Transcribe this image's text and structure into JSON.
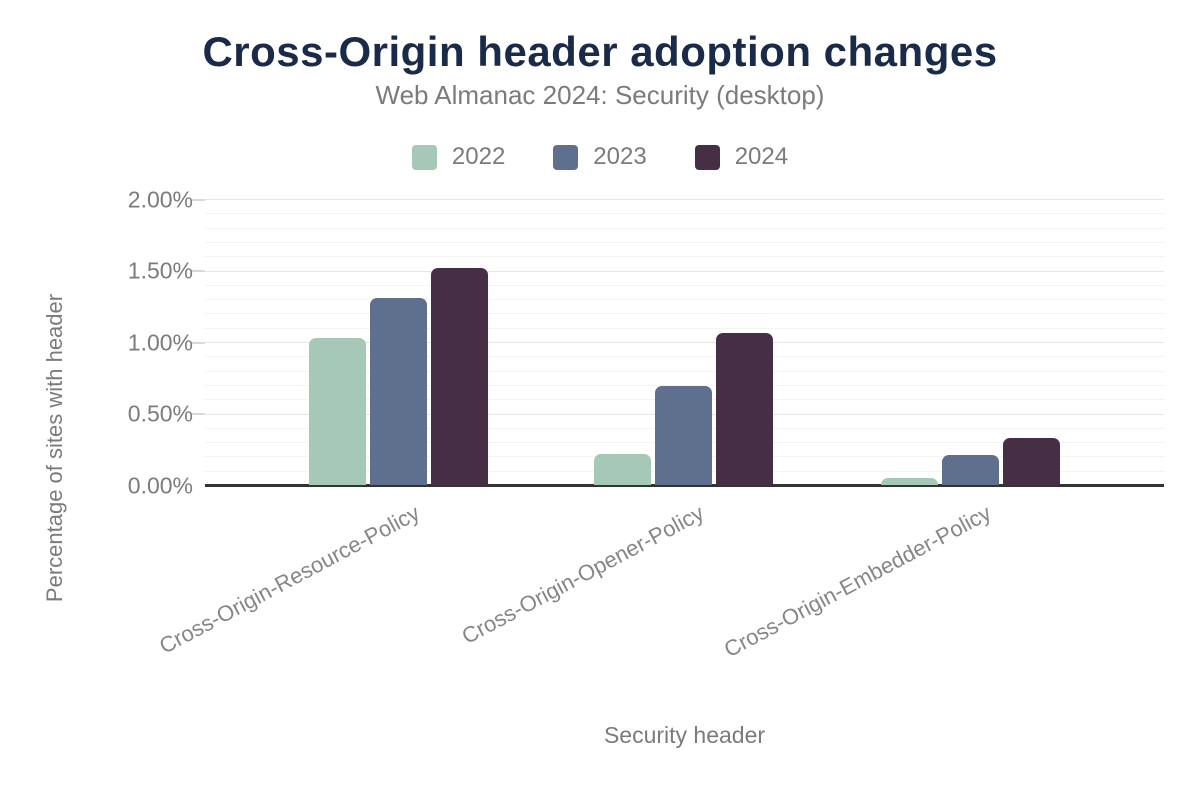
{
  "title": "Cross-Origin header adoption changes",
  "subtitle": "Web Almanac 2024: Security (desktop)",
  "colors": {
    "title_text": "#1a2b49",
    "body_text": "#7b7b7b",
    "axis_line": "#333333",
    "grid_major": "#e6e6e6",
    "grid_minor": "#f4f4f4",
    "series_2022": "#a5c8b7",
    "series_2023": "#5e708e",
    "series_2024": "#462f44"
  },
  "chart_data": {
    "type": "bar",
    "title": "Cross-Origin header adoption changes",
    "subtitle": "Web Almanac 2024: Security (desktop)",
    "categories": [
      "Cross-Origin-Resource-Policy",
      "Cross-Origin-Opener-Policy",
      "Cross-Origin-Embedder-Policy"
    ],
    "series": [
      {
        "name": "2022",
        "color": "#a5c8b7",
        "values": [
          1.03,
          0.22,
          0.05
        ]
      },
      {
        "name": "2023",
        "color": "#5e708e",
        "values": [
          1.31,
          0.69,
          0.21
        ]
      },
      {
        "name": "2024",
        "color": "#462f44",
        "values": [
          1.52,
          1.06,
          0.33
        ]
      }
    ],
    "xlabel": "Security header",
    "ylabel": "Percentage of sites with header",
    "ylim": [
      0,
      2.0
    ],
    "yticks": [
      {
        "value": 0.0,
        "label": "0.00%"
      },
      {
        "value": 0.5,
        "label": "0.50%"
      },
      {
        "value": 1.0,
        "label": "1.00%"
      },
      {
        "value": 1.5,
        "label": "1.50%"
      },
      {
        "value": 2.0,
        "label": "2.00%"
      }
    ],
    "minor_tick_step": 0.1,
    "grid": true,
    "legend_position": "top",
    "units": "percent"
  }
}
